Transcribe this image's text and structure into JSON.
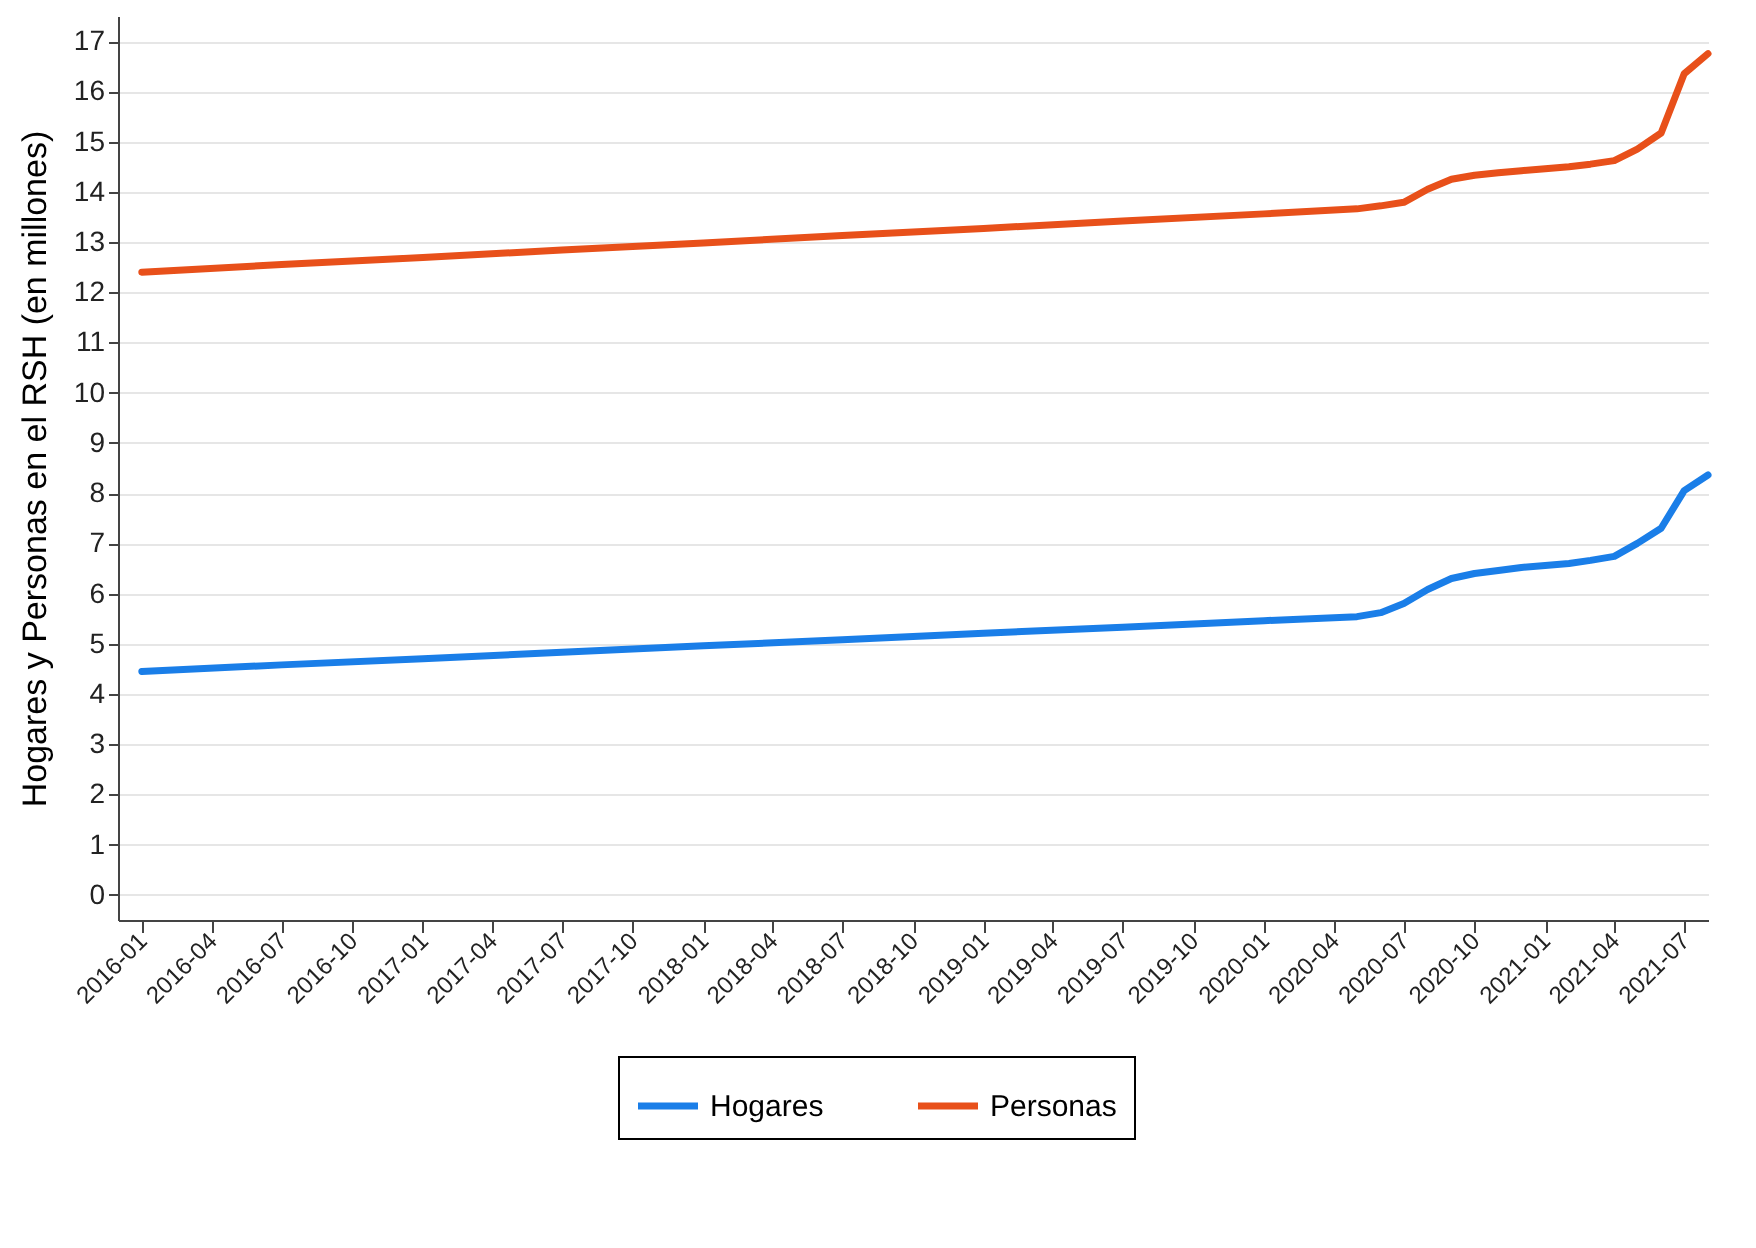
{
  "chart_data": {
    "type": "line",
    "ylabel": "Hogares y Personas en el RSH (en millones)",
    "x": [
      "2016-01",
      "2016-07",
      "2017-01",
      "2017-07",
      "2018-01",
      "2018-07",
      "2019-01",
      "2019-07",
      "2020-01",
      "2020-05",
      "2020-06",
      "2020-07",
      "2020-08",
      "2020-09",
      "2020-10",
      "2020-11",
      "2020-12",
      "2021-01",
      "2021-02",
      "2021-03",
      "2021-04",
      "2021-05",
      "2021-06",
      "2021-07",
      "2021-08"
    ],
    "series": [
      {
        "name": "Hogares",
        "color": "#1a7ee8",
        "values": [
          4.45,
          4.58,
          4.7,
          4.83,
          4.96,
          5.08,
          5.21,
          5.33,
          5.46,
          5.54,
          5.62,
          5.8,
          6.08,
          6.3,
          6.4,
          6.46,
          6.52,
          6.56,
          6.6,
          6.66,
          6.74,
          7.0,
          7.3,
          8.05,
          8.36
        ]
      },
      {
        "name": "Personas",
        "color": "#e8501a",
        "values": [
          12.4,
          12.55,
          12.69,
          12.84,
          12.98,
          13.13,
          13.27,
          13.42,
          13.56,
          13.66,
          13.72,
          13.79,
          14.05,
          14.25,
          14.33,
          14.38,
          14.42,
          14.46,
          14.5,
          14.55,
          14.62,
          14.85,
          15.17,
          16.35,
          16.75
        ]
      }
    ],
    "xlim": [
      "2015-12",
      "2021-08"
    ],
    "xticks": [
      "2016-01",
      "2016-04",
      "2016-07",
      "2016-10",
      "2017-01",
      "2017-04",
      "2017-07",
      "2017-10",
      "2018-01",
      "2018-04",
      "2018-07",
      "2018-10",
      "2019-01",
      "2019-04",
      "2019-07",
      "2019-10",
      "2020-01",
      "2020-04",
      "2020-07",
      "2020-10",
      "2021-01",
      "2021-04",
      "2021-07"
    ],
    "ylim": [
      -0.5,
      17.5
    ],
    "yticks": [
      0,
      1,
      2,
      3,
      4,
      5,
      6,
      7,
      8,
      9,
      10,
      11,
      12,
      13,
      14,
      15,
      16,
      17
    ],
    "grid": "y",
    "legend": "bottom"
  }
}
